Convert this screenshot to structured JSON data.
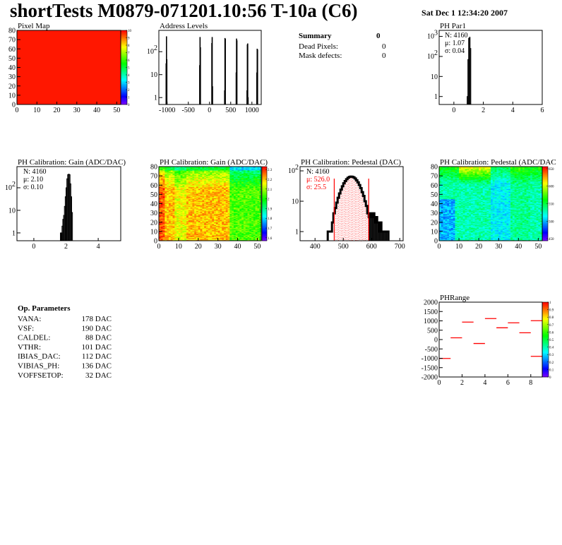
{
  "header": {
    "title": "shortTests M0879-071201.10:56 T-10a (C6)",
    "date": "Sat Dec  1 12:34:20 2007"
  },
  "summary": {
    "title": "Summary",
    "value": "0",
    "rows": [
      {
        "label": "Dead Pixels:",
        "value": "0"
      },
      {
        "label": "Mask defects:",
        "value": "0"
      }
    ]
  },
  "op_parameters": {
    "title": "Op. Parameters",
    "rows": [
      {
        "label": "VANA:",
        "value": "178 DAC"
      },
      {
        "label": "VSF:",
        "value": "190 DAC"
      },
      {
        "label": "CALDEL:",
        "value": "88 DAC"
      },
      {
        "label": "VTHR:",
        "value": "101 DAC"
      },
      {
        "label": "IBIAS_DAC:",
        "value": "112 DAC"
      },
      {
        "label": "VIBIAS_PH:",
        "value": "136 DAC"
      },
      {
        "label": "VOFFSETOP:",
        "value": "32 DAC"
      }
    ]
  },
  "chart_data": [
    {
      "id": "pixel-map",
      "type": "heatmap",
      "title": "Pixel Map",
      "xlim": [
        0,
        52
      ],
      "ylim": [
        0,
        80
      ],
      "zlim": [
        0,
        10
      ],
      "xticks": [
        0,
        10,
        20,
        30,
        40,
        50
      ],
      "yticks": [
        0,
        10,
        20,
        30,
        40,
        50,
        60,
        70,
        80
      ],
      "zticks": [
        0,
        1,
        2,
        3,
        4,
        5,
        6,
        7,
        8,
        9,
        10
      ],
      "uniform_value": 10
    },
    {
      "id": "address-levels",
      "type": "bar",
      "title": "Address Levels",
      "log_y": true,
      "xlim": [
        -1195,
        1220
      ],
      "ylim": [
        0.5,
        850
      ],
      "xticks": [
        -1000,
        -500,
        0,
        500,
        1000
      ],
      "yticks": [
        1,
        10,
        100
      ],
      "ytick_labels": [
        "1",
        "10",
        "10^2"
      ],
      "bin_width": 8,
      "bins": [
        [
          -1028,
          30
        ],
        [
          -1020,
          450
        ],
        [
          -1012,
          45
        ],
        [
          -236,
          25
        ],
        [
          -228,
          420
        ],
        [
          -220,
          150
        ],
        [
          50,
          230
        ],
        [
          58,
          420
        ],
        [
          66,
          3
        ],
        [
          352,
          2
        ],
        [
          360,
          380
        ],
        [
          368,
          350
        ],
        [
          625,
          12
        ],
        [
          633,
          360
        ],
        [
          641,
          300
        ],
        [
          880,
          2
        ],
        [
          888,
          200
        ],
        [
          896,
          220
        ],
        [
          904,
          1
        ],
        [
          1112,
          12
        ],
        [
          1120,
          130
        ],
        [
          1128,
          120
        ]
      ]
    },
    {
      "id": "ph-par1",
      "type": "bar",
      "title": "PH Par1",
      "log_y": true,
      "xlim": [
        -1,
        6
      ],
      "ylim": [
        0.4,
        2000
      ],
      "xticks": [
        0,
        2,
        4,
        6
      ],
      "yticks": [
        1,
        10,
        100,
        1000
      ],
      "ytick_labels": [
        "1",
        "10",
        "10^2",
        "10^3"
      ],
      "bin_width": 0.05,
      "bins": [
        [
          0.9,
          1
        ],
        [
          0.95,
          70
        ],
        [
          1.0,
          800
        ],
        [
          1.05,
          900
        ],
        [
          1.1,
          250
        ]
      ],
      "stats": {
        "N": "N: 4160",
        "mu": "μ: 1.07",
        "sigma": "σ: 0.04"
      }
    },
    {
      "id": "gain-hist",
      "type": "bar",
      "title": "PH Calibration: Gain (ADC/DAC)",
      "log_y": true,
      "xlim": [
        -1.05,
        5.4
      ],
      "ylim": [
        0.45,
        865
      ],
      "xticks": [
        0,
        2,
        4
      ],
      "yticks": [
        1,
        10,
        100
      ],
      "ytick_labels": [
        "1",
        "10",
        "10^2"
      ],
      "bin_width": 0.05,
      "bins": [
        [
          1.65,
          1
        ],
        [
          1.7,
          1
        ],
        [
          1.75,
          2
        ],
        [
          1.8,
          4
        ],
        [
          1.85,
          6
        ],
        [
          1.9,
          15
        ],
        [
          1.95,
          40
        ],
        [
          2.0,
          100
        ],
        [
          2.05,
          250
        ],
        [
          2.1,
          380
        ],
        [
          2.15,
          400
        ],
        [
          2.2,
          380
        ],
        [
          2.25,
          150
        ],
        [
          2.3,
          40
        ],
        [
          2.35,
          8
        ]
      ],
      "stats": {
        "N": "N: 4160",
        "mu": "μ: 2.10",
        "sigma": "σ: 0.10"
      }
    },
    {
      "id": "gain-map",
      "type": "heatmap",
      "title": "PH Calibration: Gain (ADC/DAC)",
      "xlim": [
        0,
        52
      ],
      "ylim": [
        0,
        80
      ],
      "zlim": [
        1.57,
        2.33
      ],
      "xticks": [
        0,
        10,
        20,
        30,
        40,
        50
      ],
      "yticks": [
        0,
        10,
        20,
        30,
        40,
        50,
        60,
        70,
        80
      ],
      "zticks": [
        1.6,
        1.7,
        1.8,
        1.9,
        2,
        2.1,
        2.2,
        2.3
      ]
    },
    {
      "id": "pedestal-hist",
      "type": "bar",
      "title": "PH Calibration: Pedestal (DAC)",
      "log_y": true,
      "xlim": [
        347,
        712
      ],
      "ylim": [
        0.5,
        138
      ],
      "xticks": [
        400,
        500,
        600,
        700
      ],
      "yticks": [
        1,
        10,
        100
      ],
      "ytick_labels": [
        "1",
        "10",
        "10^2"
      ],
      "bin_width": 5,
      "values_x0": 445,
      "values": [
        1,
        1,
        1,
        2,
        4,
        6,
        9,
        13,
        18,
        24,
        31,
        39,
        46,
        53,
        59,
        63,
        65,
        64,
        61,
        56,
        49,
        42,
        34,
        27,
        20,
        15,
        10,
        7,
        4,
        3,
        4,
        3,
        4,
        2,
        3,
        2,
        1,
        2,
        1,
        1,
        1,
        1,
        1
      ],
      "fit_range": [
        468,
        590
      ],
      "stats": {
        "N": "N: 4160",
        "mu": "μ: 526.0",
        "sigma": "σ: 25.5"
      },
      "fit_color": "#ff0000"
    },
    {
      "id": "pedestal-map",
      "type": "heatmap",
      "title": "PH Calibration: Pedestal (ADC/DAC",
      "xlim": [
        0,
        52
      ],
      "ylim": [
        0,
        80
      ],
      "zlim": [
        444,
        656
      ],
      "xticks": [
        0,
        10,
        20,
        30,
        40,
        50
      ],
      "yticks": [
        0,
        10,
        20,
        30,
        40,
        50,
        60,
        70,
        80
      ],
      "zticks": [
        450,
        500,
        550,
        600,
        650
      ]
    },
    {
      "id": "ph-range",
      "type": "heatmap",
      "title": "PHRange",
      "xlim": [
        0,
        9
      ],
      "ylim": [
        -2000,
        2000
      ],
      "zlim": [
        0,
        1
      ],
      "xticks": [
        0,
        2,
        4,
        6,
        8
      ],
      "yticks": [
        -2000,
        -1500,
        -1000,
        -500,
        0,
        500,
        1000,
        1500,
        2000
      ],
      "zticks": [
        0,
        0.1,
        0.2,
        0.3,
        0.4,
        0.5,
        0.6,
        0.7,
        0.8,
        0.9,
        1
      ],
      "segments": [
        [
          0,
          -1010
        ],
        [
          1,
          95
        ],
        [
          2,
          933
        ],
        [
          3,
          -210
        ],
        [
          4,
          1124
        ],
        [
          5,
          629
        ],
        [
          6,
          895
        ],
        [
          7,
          362
        ],
        [
          8,
          1010
        ],
        [
          8,
          -895
        ]
      ],
      "segment_color": "#ff0000"
    }
  ]
}
